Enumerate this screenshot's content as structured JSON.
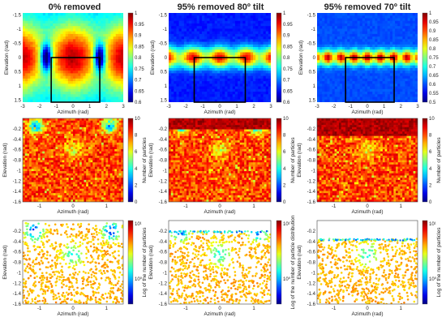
{
  "figure": {
    "colormap": "jet",
    "columns": [
      {
        "title": "0% removed",
        "removed_percent": 0,
        "tilt_deg": null
      },
      {
        "title": "95% removed 80º tilt",
        "removed_percent": 95,
        "tilt_deg": 80
      },
      {
        "title": "95% removed 70º tilt",
        "removed_percent": 95,
        "tilt_deg": 70
      }
    ]
  },
  "chart_data": [
    {
      "type": "heatmap",
      "row": "top",
      "column": 1,
      "xlabel": "Azimuth (rad)",
      "ylabel": "Elevation (rad)",
      "xlim": [
        -3,
        3
      ],
      "ylim": [
        -1.57,
        1.57
      ],
      "xticks": [
        "-3",
        "-2",
        "-1",
        "0",
        "1",
        "2",
        "3"
      ],
      "yticks": [
        "-1.5",
        "-1",
        "-0.5",
        "0",
        "0.5",
        "1",
        "1.5"
      ],
      "colorbar": {
        "range": [
          0.6,
          1.0
        ],
        "ticks": [
          "1",
          "0.95",
          "0.9",
          "0.85",
          "0.8",
          "0.75",
          "0.7",
          "0.65",
          "0.6"
        ]
      },
      "highlight_box": {
        "azimuth": [
          -1.3,
          1.6
        ],
        "elevation": [
          0,
          1.57
        ]
      },
      "pattern": {
        "band_elevation": 0,
        "band_width": 0.8,
        "lobes": 2,
        "base": 0.72,
        "amp": 0.26
      }
    },
    {
      "type": "heatmap",
      "row": "top",
      "column": 2,
      "xlabel": "Azimuth (rad)",
      "ylabel": "Elevation (rad)",
      "xlim": [
        -3,
        3
      ],
      "ylim": [
        -1.57,
        1.57
      ],
      "xticks": [
        "-3",
        "-2",
        "-1",
        "0",
        "1",
        "2",
        "3"
      ],
      "yticks": [
        "-1.5",
        "-1",
        "-0.5",
        "0",
        "0.5",
        "1",
        "1.5"
      ],
      "colorbar": {
        "range": [
          0.6,
          1.0
        ],
        "ticks": [
          "1",
          "0.95",
          "0.9",
          "0.85",
          "0.8",
          "0.75",
          "0.7",
          "0.65",
          "0.6"
        ]
      },
      "highlight_box": {
        "azimuth": [
          -1.5,
          1.5
        ],
        "elevation": [
          0,
          1.57
        ]
      },
      "pattern": {
        "band_elevation": 0,
        "band_width": 0.25,
        "lobes": 4,
        "base": 0.66,
        "amp": 0.3
      }
    },
    {
      "type": "heatmap",
      "row": "top",
      "column": 3,
      "xlabel": "Azimuth (rad)",
      "ylabel": "Elevation (rad)",
      "xlim": [
        -3,
        3
      ],
      "ylim": [
        -1.57,
        1.57
      ],
      "xticks": [
        "-3",
        "-2",
        "-1",
        "0",
        "1",
        "2",
        "3"
      ],
      "yticks": [
        "-1.5",
        "-1",
        "-0.5",
        "0",
        "0.5",
        "1",
        "1.5"
      ],
      "colorbar": {
        "range": [
          0.5,
          1.0
        ],
        "ticks": [
          "1",
          "0.95",
          "0.9",
          "0.85",
          "0.8",
          "0.75",
          "0.7",
          "0.65",
          "0.6",
          "0.55",
          "0.5"
        ]
      },
      "highlight_box": {
        "azimuth": [
          -1.3,
          1.6
        ],
        "elevation": [
          0,
          1.57
        ]
      },
      "pattern": {
        "band_elevation": 0,
        "band_width": 0.18,
        "lobes": 8,
        "base": 0.6,
        "amp": 0.38
      }
    },
    {
      "type": "scatter",
      "row": "middle",
      "column": 1,
      "xlabel": "Azimuth (rad)",
      "ylabel": "Elevation (rad)",
      "xlim": [
        -1.5,
        1.5
      ],
      "ylim": [
        -1.6,
        0
      ],
      "xticks": [
        "-1",
        "0",
        "1"
      ],
      "yticks": [
        "-0.2",
        "-0.4",
        "-0.6",
        "-0.8",
        "-1",
        "-1.2",
        "-1.4",
        "-1.6"
      ],
      "colorbar": {
        "label": "Number of particles",
        "range": [
          0,
          10
        ],
        "ticks": [
          "10",
          "8",
          "6",
          "4",
          "2",
          "0"
        ]
      },
      "cutoff_elevation": null
    },
    {
      "type": "scatter",
      "row": "middle",
      "column": 2,
      "xlabel": "Azimuth (rad)",
      "ylabel": "Elevation (rad)",
      "xlim": [
        -1.5,
        1.5
      ],
      "ylim": [
        -1.6,
        0
      ],
      "xticks": [
        "-1",
        "0",
        "1"
      ],
      "yticks": [
        "-0.2",
        "-0.4",
        "-0.6",
        "-0.8",
        "-1",
        "-1.2",
        "-1.4",
        "-1.6"
      ],
      "colorbar": {
        "label": "Number of particles",
        "range": [
          0,
          10
        ],
        "ticks": [
          "10",
          "8",
          "6",
          "4",
          "2",
          "0"
        ]
      },
      "cutoff_elevation": -0.2
    },
    {
      "type": "scatter",
      "row": "middle",
      "column": 3,
      "xlabel": "Azimuth (rad)",
      "ylabel": "Elevation (rad)",
      "xlim": [
        -1.5,
        1.5
      ],
      "ylim": [
        -1.6,
        0
      ],
      "xticks": [
        "-1",
        "0",
        "1"
      ],
      "yticks": [
        "-0.2",
        "-0.4",
        "-0.6",
        "-0.8",
        "-1",
        "-1.2",
        "-1.4",
        "-1.6"
      ],
      "colorbar": {
        "label": "Number of particles",
        "range": [
          0,
          10
        ],
        "ticks": [
          "10",
          "8",
          "6",
          "4",
          "2",
          "0"
        ]
      },
      "cutoff_elevation": -0.35
    },
    {
      "type": "scatter",
      "row": "bottom",
      "column": 1,
      "xlabel": "Azimuth (rad)",
      "ylabel": "Elevation (rad)",
      "xlim": [
        -1.5,
        1.5
      ],
      "ylim": [
        -1.6,
        0
      ],
      "xticks": [
        "-1",
        "0",
        "1"
      ],
      "yticks": [
        "-0.2",
        "-0.4",
        "-0.6",
        "-0.8",
        "-1",
        "-1.2",
        "-1.4",
        "-1.6"
      ],
      "colorbar": {
        "label": "Log of the number of particles",
        "scale": "log",
        "ticks": [
          "10¹",
          "10⁰"
        ]
      },
      "cutoff_elevation": null
    },
    {
      "type": "scatter",
      "row": "bottom",
      "column": 2,
      "xlabel": "Azimuth (rad)",
      "ylabel": "Elevation (rad)",
      "xlim": [
        -1.5,
        1.5
      ],
      "ylim": [
        -1.6,
        0
      ],
      "xticks": [
        "-1",
        "0",
        "1"
      ],
      "yticks": [
        "-0.2",
        "-0.4",
        "-0.6",
        "-0.8",
        "-1",
        "-1.2",
        "-1.4",
        "-1.6"
      ],
      "colorbar": {
        "label": "Log of the number of particle distribution",
        "scale": "log",
        "ticks": [
          "10¹",
          "10⁰"
        ]
      },
      "cutoff_elevation": -0.2
    },
    {
      "type": "scatter",
      "row": "bottom",
      "column": 3,
      "xlabel": "Azimuth (rad)",
      "ylabel": "Elevation (rad)",
      "xlim": [
        -1.5,
        1.5
      ],
      "ylim": [
        -1.6,
        0
      ],
      "xticks": [
        "-1",
        "0",
        "1"
      ],
      "yticks": [
        "-0.2",
        "-0.4",
        "-0.6",
        "-0.8",
        "-1",
        "-1.2",
        "-1.4",
        "-1.6"
      ],
      "colorbar": {
        "label": "Log of the number of particles",
        "scale": "log",
        "ticks": [
          "10¹",
          "10⁰"
        ]
      },
      "cutoff_elevation": -0.35
    }
  ]
}
